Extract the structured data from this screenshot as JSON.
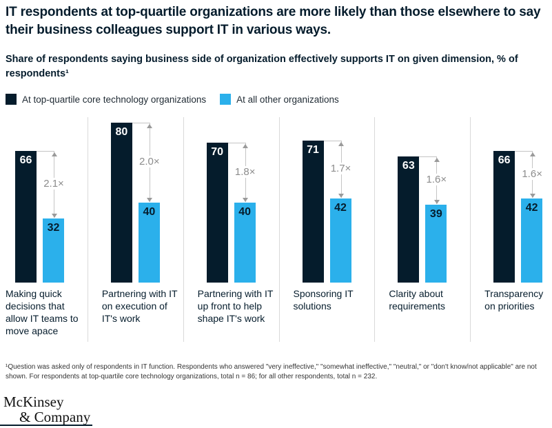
{
  "header": {
    "title": "IT respondents at top-quartile organizations are more likely than those elsewhere to say their business colleagues support IT in various ways.",
    "subtitle": "Share of respondents saying business side of organization effectively supports IT on given dimension, % of respondents¹"
  },
  "legend": {
    "items": [
      {
        "label": "At top-quartile core technology organizations",
        "color": "#051c2c"
      },
      {
        "label": "At all other organizations",
        "color": "#2bb0eb"
      }
    ]
  },
  "chart_data": {
    "type": "bar",
    "title": "Share of respondents saying business side of organization effectively supports IT on given dimension, % of respondents",
    "categories": [
      "Making quick decisions that allow IT teams to move apace",
      "Partnering with IT on execution of IT's work",
      "Partnering with IT up front to help shape IT's work",
      "Sponsoring IT solutions",
      "Clarity about requirements",
      "Transparency on priorities"
    ],
    "series": [
      {
        "name": "At top-quartile core technology organizations",
        "color": "#051c2c",
        "values": [
          66,
          80,
          70,
          71,
          63,
          66
        ]
      },
      {
        "name": "At all other organizations",
        "color": "#2bb0eb",
        "values": [
          32,
          40,
          40,
          42,
          39,
          42
        ]
      }
    ],
    "ratio_annotations": [
      "2.1×",
      "2.0×",
      "1.8×",
      "1.7×",
      "1.6×",
      "1.6×"
    ],
    "ylim": [
      0,
      80
    ],
    "grid": "off",
    "legend_position": "top",
    "value_labels": "inside-top"
  },
  "footnote": "¹Question was asked only of respondents in IT function. Respondents who answered \"very ineffective,\" \"somewhat ineffective,\" \"neutral,\" or \"don't know/not applicable\" are not shown. For respondents at top-quartile core technology organizations, total n = 86; for all other respondents, total n = 232.",
  "logo": {
    "line1": "McKinsey",
    "line2": "& Company"
  }
}
